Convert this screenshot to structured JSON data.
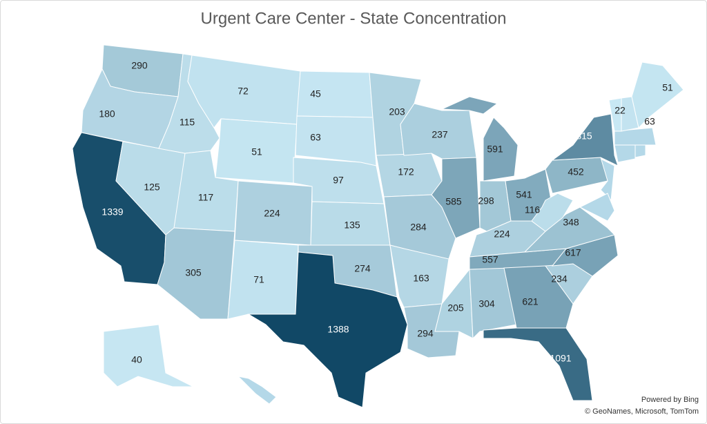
{
  "title": "Urgent Care Center - State Concentration",
  "map": {
    "values": [
      290,
      180,
      1339,
      125,
      115,
      72,
      51,
      117,
      224,
      305,
      71,
      45,
      63,
      97,
      135,
      274,
      1388,
      203,
      172,
      284,
      163,
      294,
      205,
      304,
      237,
      585,
      591,
      298,
      541,
      224,
      557,
      621,
      1091,
      234,
      617,
      348,
      116,
      452,
      815,
      22,
      63,
      51,
      40
    ],
    "colors": {
      "low": "#c8e8f4",
      "high": "#114866"
    }
  },
  "attribution": [
    "Powered by Bing",
    "© GeoNames, Microsoft, TomTom"
  ]
}
